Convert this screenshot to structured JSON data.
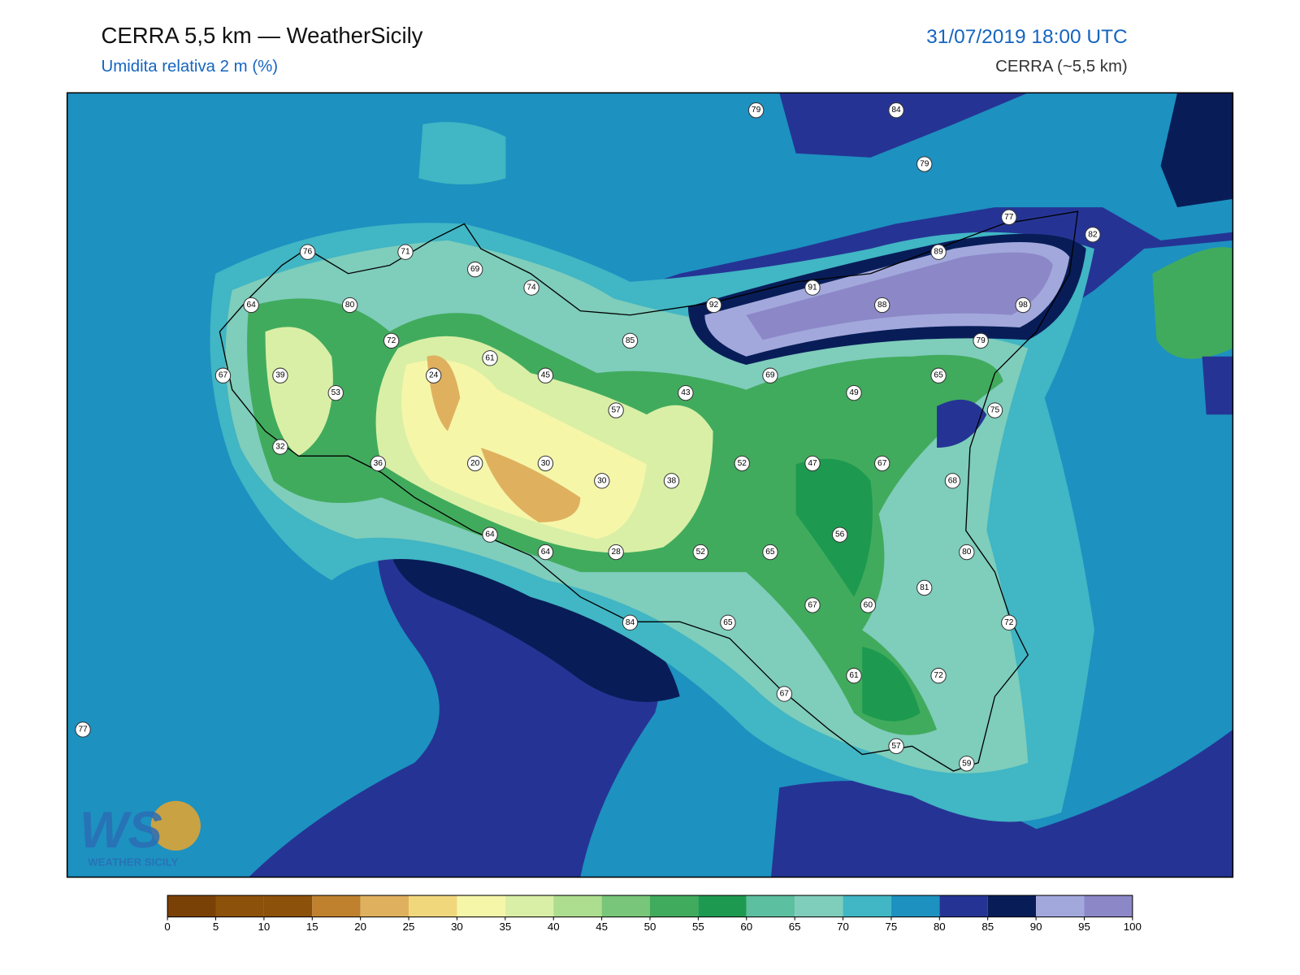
{
  "header": {
    "title": "CERRA 5,5 km — WeatherSicily",
    "subtitle": "Umidita relativa 2 m (%)",
    "datetime": "31/07/2019 18:00 UTC",
    "model": "CERRA (~5,5 km)"
  },
  "logo": {
    "mark": "WS",
    "text": "WEATHER SICILY"
  },
  "stations": [
    79,
    84,
    79,
    77,
    82,
    89,
    76,
    71,
    69,
    74,
    91,
    64,
    80,
    92,
    88,
    98,
    72,
    85,
    79,
    61,
    67,
    39,
    24,
    45,
    69,
    65,
    53,
    43,
    49,
    57,
    75,
    32,
    36,
    20,
    30,
    52,
    47,
    67,
    30,
    38,
    68,
    56,
    64,
    64,
    28,
    52,
    65,
    80,
    81,
    67,
    60,
    84,
    65,
    72,
    61,
    72,
    67,
    77,
    57,
    59
  ],
  "colorbar": {
    "ticks": [
      0,
      5,
      10,
      15,
      20,
      25,
      30,
      35,
      40,
      45,
      50,
      55,
      60,
      65,
      70,
      75,
      80,
      85,
      90,
      95,
      100
    ],
    "colors": [
      "#7a4106",
      "#8c510a",
      "#8c510a",
      "#bf812d",
      "#dfb15f",
      "#f0d77c",
      "#f6f6a9",
      "#d9efa6",
      "#addd8e",
      "#78c679",
      "#41ab5d",
      "#1d9a50",
      "#5cbf9f",
      "#7fcdbb",
      "#41b6c4",
      "#1d91c0",
      "#253494",
      "#081d58",
      "#a3a8dc",
      "#8c88c8"
    ]
  }
}
